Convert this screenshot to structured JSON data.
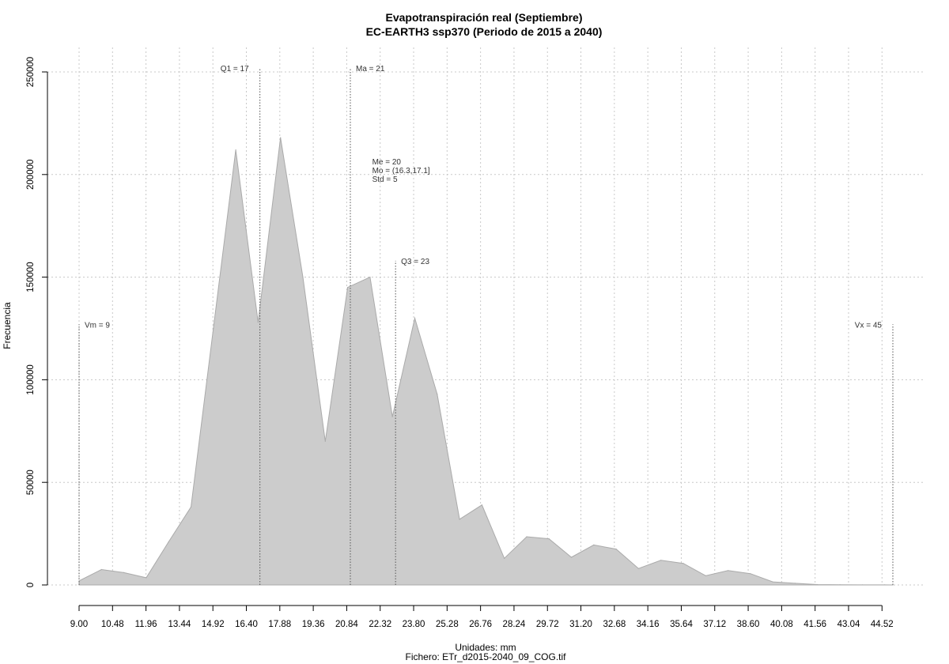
{
  "chart_data": {
    "type": "area",
    "title": "Evapotranspiración real (Septiembre)",
    "subtitle": "EC-EARTH3 ssp370 (Periodo de 2015 a 2040)",
    "xlabel": "Unidades: mm",
    "ylabel": "Frecuencia",
    "file_label": "Fichero: ETr_d2015-2040_09_COG.tif",
    "xlim": [
      9.0,
      45.0
    ],
    "ylim": [
      0,
      250000
    ],
    "x_ticks": [
      "9.00",
      "10.48",
      "11.96",
      "13.44",
      "14.92",
      "16.40",
      "17.88",
      "19.36",
      "20.84",
      "22.32",
      "23.80",
      "25.28",
      "26.76",
      "28.24",
      "29.72",
      "31.20",
      "32.68",
      "34.16",
      "35.64",
      "37.12",
      "38.60",
      "40.08",
      "41.56",
      "43.04",
      "44.52"
    ],
    "y_ticks": [
      0,
      50000,
      100000,
      150000,
      200000,
      250000
    ],
    "y_tick_labels": [
      "0",
      "50000",
      "100000",
      "150000",
      "200000",
      "250000"
    ],
    "grid": true,
    "color_fill": "#cccccc",
    "color_stroke": "#aaaaaa",
    "series": [
      {
        "x": [
          9.0,
          9.99,
          10.98,
          11.97,
          12.96,
          13.95,
          14.94,
          15.93,
          16.92,
          17.91,
          18.9,
          19.89,
          20.88,
          21.87,
          22.86,
          23.85,
          24.84,
          25.83,
          26.82,
          27.81,
          28.8,
          29.79,
          30.78,
          31.77,
          32.76,
          33.75,
          34.74,
          35.73,
          36.72,
          37.71,
          38.7,
          39.69,
          40.68,
          41.67,
          42.66,
          43.65,
          44.64,
          45.0
        ],
        "values": [
          2000,
          7500,
          6000,
          3500,
          21000,
          38000,
          125000,
          212000,
          128000,
          218000,
          150000,
          70000,
          145000,
          150000,
          82000,
          130000,
          93000,
          32000,
          39000,
          13000,
          23500,
          22500,
          13500,
          19500,
          17500,
          8000,
          12000,
          10500,
          4500,
          7000,
          5500,
          1500,
          800,
          200,
          100,
          50,
          20,
          0
        ]
      }
    ],
    "markers": [
      {
        "label": "Vm = 9",
        "x": 9.0,
        "top": 127000,
        "label_side": "right"
      },
      {
        "label": "Q1 = 17",
        "x": 17.0,
        "top": 252000,
        "label_side": "left"
      },
      {
        "label": "Ma = 21",
        "x": 21.0,
        "top": 252000,
        "label_side": "right"
      },
      {
        "label": "Q3 = 23",
        "x": 23.0,
        "top": 158000,
        "label_side": "right"
      },
      {
        "label": "Vx = 45",
        "x": 45.0,
        "top": 127000,
        "label_side": "left"
      }
    ],
    "stats": [
      "Me = 20",
      "Mo = (16.3,17.1]",
      "Std = 5"
    ],
    "stats_anchor": {
      "x": 22.0,
      "y": 205000
    }
  }
}
